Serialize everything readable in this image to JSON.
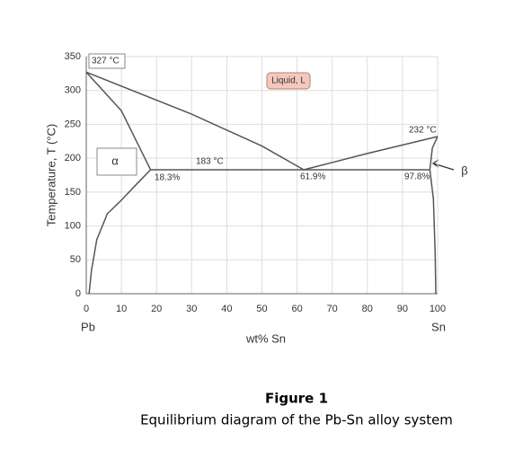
{
  "chart_data": {
    "type": "line",
    "y_label": "Temperature, T (°C)",
    "x_label": "wt% Sn",
    "x_end_labels": [
      "Pb",
      "Sn"
    ],
    "xlim": [
      0,
      100
    ],
    "xticks": [
      0,
      10,
      20,
      30,
      40,
      50,
      60,
      70,
      80,
      90,
      100
    ],
    "ylim": [
      0,
      350
    ],
    "yticks": [
      0,
      50,
      100,
      150,
      200,
      250,
      300,
      350
    ],
    "grid": true,
    "series": [
      {
        "color": "#555555",
        "x": [
          0,
          30,
          50,
          61.9
        ],
        "values": [
          327,
          265,
          218,
          183
        ]
      },
      {
        "color": "#555555",
        "x": [
          61.9,
          80,
          100
        ],
        "values": [
          183,
          207,
          232
        ]
      },
      {
        "color": "#555555",
        "x": [
          0,
          10,
          18.3
        ],
        "values": [
          327,
          270,
          183
        ]
      },
      {
        "color": "#555555",
        "x": [
          18.3,
          14,
          10,
          6,
          3,
          1.5,
          0.8
        ],
        "values": [
          183,
          160,
          138,
          118,
          80,
          35,
          0
        ]
      },
      {
        "color": "#555555",
        "x": [
          18.3,
          97.8
        ],
        "values": [
          183,
          183
        ]
      },
      {
        "color": "#555555",
        "x": [
          100,
          98.5,
          97.8
        ],
        "values": [
          232,
          215,
          183
        ]
      },
      {
        "color": "#555555",
        "x": [
          97.8,
          98.8,
          99.3,
          99.5
        ],
        "values": [
          183,
          140,
          60,
          0
        ]
      }
    ],
    "annotations": [
      "327 °C",
      "Liquid, L",
      "232 °C",
      "α",
      "183 °C",
      "18.3%",
      "61.9%",
      "97.8%",
      "β"
    ],
    "figure_label": "Figure 1",
    "caption": "Equilibrium diagram of the Pb-Sn alloy system"
  }
}
